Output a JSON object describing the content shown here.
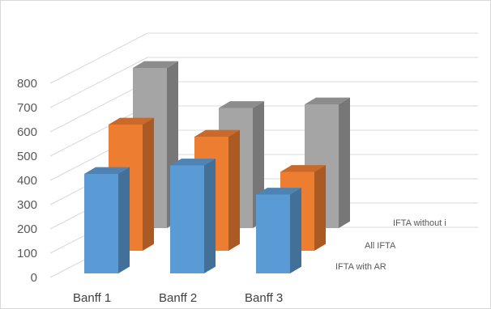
{
  "chart_data": {
    "type": "bar",
    "subtype": "3d-clustered-column",
    "title": "",
    "xlabel": "",
    "ylabel": "",
    "ylim": [
      0,
      800
    ],
    "yticks": [
      "0",
      "100",
      "200",
      "300",
      "400",
      "500",
      "600",
      "700",
      "800"
    ],
    "grid": true,
    "categories": [
      "Banff 1",
      "Banff 2",
      "Banff 3"
    ],
    "series": [
      {
        "name": "IFTA with AR",
        "values": [
          410,
          445,
          325
        ],
        "color": "#5b9bd5"
      },
      {
        "name": "All IFTA",
        "values": [
          520,
          470,
          325
        ],
        "color": "#ed7d31"
      },
      {
        "name": "IFTA without i",
        "values": [
          660,
          495,
          510
        ],
        "color": "#a5a5a5"
      }
    ]
  }
}
